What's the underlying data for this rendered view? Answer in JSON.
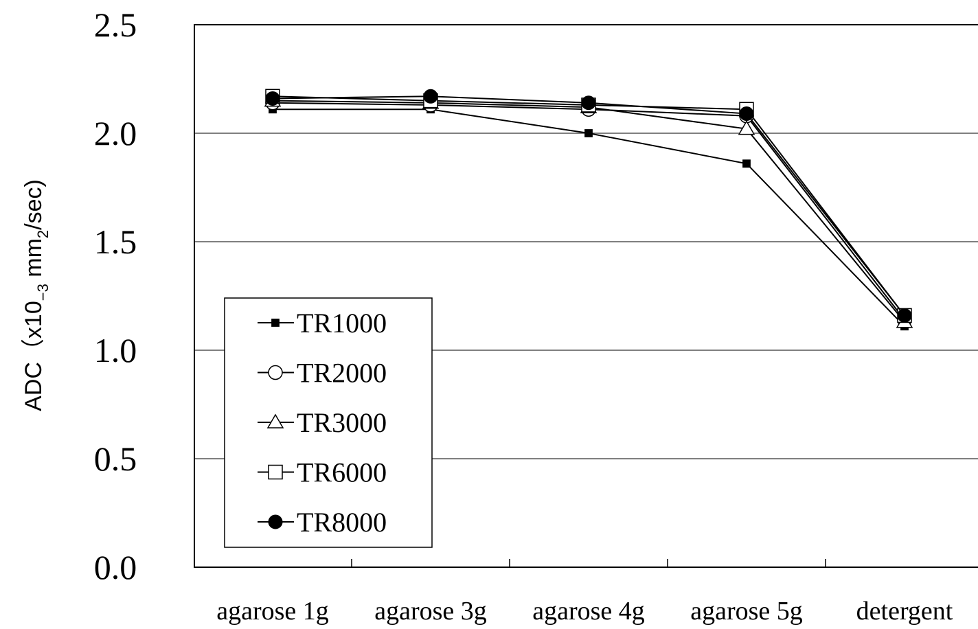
{
  "chart_data": {
    "type": "line",
    "title": "",
    "xlabel": "",
    "ylabel": {
      "prefix": "ADC（x10",
      "exp1": "−3",
      "mid": " mm",
      "exp2": "2",
      "suffix": "/sec)"
    },
    "categories": [
      "agarose 1g",
      "agarose 3g",
      "agarose 4g",
      "agarose 5g",
      "detergent"
    ],
    "ylim": [
      0,
      2.5
    ],
    "yticks": [
      "0.0",
      "0.5",
      "1.0",
      "1.5",
      "2.0",
      "2.5"
    ],
    "grid": "horizontal",
    "legend_position": "lower-left",
    "series": [
      {
        "name": "TR1000",
        "marker": "filled-square",
        "values": [
          2.11,
          2.11,
          2.0,
          1.86,
          1.11
        ]
      },
      {
        "name": "TR2000",
        "marker": "open-circle",
        "values": [
          2.14,
          2.13,
          2.11,
          2.08,
          1.14
        ]
      },
      {
        "name": "TR3000",
        "marker": "open-triangle",
        "values": [
          2.15,
          2.14,
          2.12,
          2.02,
          1.13
        ]
      },
      {
        "name": "TR6000",
        "marker": "open-square",
        "values": [
          2.17,
          2.15,
          2.13,
          2.11,
          1.16
        ]
      },
      {
        "name": "TR8000",
        "marker": "filled-circle",
        "values": [
          2.16,
          2.17,
          2.14,
          2.09,
          1.16
        ]
      }
    ]
  }
}
